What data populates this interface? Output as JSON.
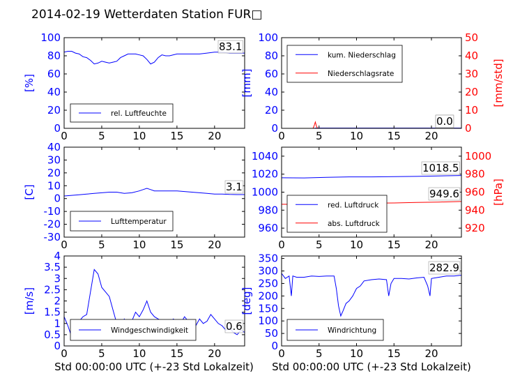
{
  "figure": {
    "title": "2014-02-19 Wetterdaten Station FUR□",
    "xlabel": "Std 00:00:00 UTC (+-23 Std Lokalzeit)",
    "colors": {
      "left_axis": "#0000ff",
      "right_axis": "#ff0000",
      "text": "#000000"
    }
  },
  "chart_data": [
    {
      "id": "humidity",
      "type": "line",
      "xlim": [
        0,
        24
      ],
      "ylim": [
        0,
        100
      ],
      "xticks": [
        0,
        5,
        10,
        15,
        20
      ],
      "yticks": [
        0,
        20,
        40,
        60,
        80,
        100
      ],
      "ylabel": "[%]",
      "legend_loc": "lower-left",
      "last_value": "83.1",
      "series": [
        {
          "name": "rel. Luftfeuchte",
          "axis": "left",
          "color": "#0000ff",
          "x": [
            0,
            0.5,
            1,
            1.5,
            2,
            2.5,
            3,
            3.5,
            4,
            4.5,
            5,
            5.5,
            6,
            6.5,
            7,
            7.5,
            8,
            8.5,
            9,
            9.5,
            10,
            10.5,
            11,
            11.5,
            12,
            12.5,
            13,
            13.5,
            14,
            15,
            16,
            17,
            18,
            19,
            20,
            21,
            22,
            23,
            24
          ],
          "y": [
            84,
            85,
            85,
            83,
            82,
            79,
            78,
            75,
            71,
            72,
            74,
            73,
            72,
            73,
            74,
            78,
            80,
            82,
            82,
            82,
            81,
            80,
            76,
            71,
            73,
            78,
            81,
            80,
            80,
            82,
            82,
            82,
            82,
            83,
            84,
            84,
            83,
            83,
            83
          ]
        }
      ]
    },
    {
      "id": "precipitation",
      "type": "line",
      "xlim": [
        0,
        24
      ],
      "ylim": [
        0,
        100
      ],
      "y2lim": [
        0,
        50
      ],
      "xticks": [
        0,
        5,
        10,
        15,
        20
      ],
      "yticks": [
        0,
        20,
        40,
        60,
        80,
        100
      ],
      "y2ticks": [
        0,
        10,
        20,
        30,
        40,
        50
      ],
      "ylabel": "[mm]",
      "y2label": "[mm/std]",
      "legend_loc": "upper-left",
      "last_value": "0.0",
      "last_value_2": "0.0",
      "series": [
        {
          "name": "kum. Niederschlag",
          "axis": "left",
          "color": "#0000ff",
          "x": [
            0,
            4.3,
            4.6,
            24
          ],
          "y": [
            0,
            0,
            0.3,
            0.3
          ]
        },
        {
          "name": "Niederschlagsrate",
          "axis": "right",
          "color": "#ff0000",
          "x": [
            0,
            4.2,
            4.35,
            4.5,
            4.65,
            4.8,
            24
          ],
          "y": [
            0,
            0,
            1.5,
            3.5,
            1.2,
            0,
            0
          ]
        }
      ]
    },
    {
      "id": "temperature",
      "type": "line",
      "xlim": [
        0,
        24
      ],
      "ylim": [
        -30,
        40
      ],
      "xticks": [
        0,
        5,
        10,
        15,
        20
      ],
      "yticks": [
        -30,
        -20,
        -10,
        0,
        10,
        20,
        30,
        40
      ],
      "ylabel": "[C]",
      "legend_loc": "lower-left",
      "last_value": "3.1",
      "series": [
        {
          "name": "Lufttemperatur",
          "axis": "left",
          "color": "#0000ff",
          "x": [
            0,
            1,
            2,
            3,
            4,
            5,
            6,
            7,
            8,
            9,
            10,
            10.5,
            11,
            11.5,
            12,
            13,
            14,
            15,
            16,
            17,
            18,
            19,
            20,
            21,
            22,
            23,
            24
          ],
          "y": [
            2,
            2.5,
            3,
            3.5,
            4,
            4.5,
            5,
            5,
            4,
            4.5,
            6,
            7,
            8,
            7,
            6,
            6,
            6,
            6,
            5.5,
            5,
            4.5,
            4,
            3.5,
            3.5,
            3.2,
            3.1,
            3.1
          ]
        }
      ]
    },
    {
      "id": "pressure",
      "type": "line",
      "xlim": [
        0,
        24
      ],
      "ylim": [
        950,
        1050
      ],
      "y2lim": [
        910,
        1010
      ],
      "xticks": [
        0,
        5,
        10,
        15,
        20
      ],
      "yticks": [
        960,
        980,
        1000,
        1020,
        1040
      ],
      "y2ticks": [
        920,
        940,
        960,
        980,
        1000
      ],
      "y2label": "[hPa]",
      "legend_loc": "lower-left",
      "last_value": "1018.5",
      "last_value_2": "949.6",
      "series": [
        {
          "name": "red. Luftdruck",
          "axis": "left",
          "color": "#0000ff",
          "x": [
            0,
            3,
            6,
            9,
            12,
            15,
            18,
            21,
            24
          ],
          "y": [
            1016,
            1015.8,
            1016.5,
            1017,
            1017,
            1017.2,
            1017.5,
            1018,
            1018.5
          ]
        },
        {
          "name": "abs. Luftdruck",
          "axis": "right",
          "color": "#ff0000",
          "x": [
            0,
            3,
            6,
            9,
            12,
            15,
            18,
            21,
            24
          ],
          "y": [
            946.5,
            946.4,
            947,
            947.5,
            947.8,
            948,
            948.5,
            949,
            949.6
          ]
        }
      ]
    },
    {
      "id": "windspeed",
      "type": "line",
      "xlim": [
        0,
        24
      ],
      "ylim": [
        0,
        4
      ],
      "xticks": [
        0,
        5,
        10,
        15,
        20
      ],
      "yticks": [
        0,
        0.5,
        1,
        1.5,
        2,
        2.5,
        3,
        3.5,
        4
      ],
      "ylabel": "[m/s]",
      "legend_loc": "lower-center",
      "last_value": "0.6",
      "series": [
        {
          "name": "Windgeschwindigkeit",
          "axis": "left",
          "color": "#0000ff",
          "x": [
            0,
            0.5,
            1,
            1.5,
            2,
            2.5,
            3,
            3.5,
            4,
            4.5,
            5,
            5.5,
            6,
            6.5,
            7,
            7.5,
            8,
            8.5,
            9,
            9.5,
            10,
            10.5,
            11,
            11.5,
            12,
            12.5,
            13,
            13.5,
            14,
            14.5,
            15,
            15.5,
            16,
            16.5,
            17,
            17.5,
            18,
            18.5,
            19,
            19.5,
            20,
            20.5,
            21,
            21.5,
            22,
            22.5,
            23,
            23.5,
            24
          ],
          "y": [
            1.3,
            0.9,
            0.4,
            0.8,
            1.1,
            1.3,
            1.4,
            2.4,
            3.4,
            3.2,
            2.6,
            2.4,
            2.2,
            1.6,
            1.0,
            0.8,
            1.2,
            1.0,
            1.1,
            1.5,
            1.3,
            1.6,
            2.0,
            1.5,
            1.3,
            1.2,
            1.1,
            1.0,
            0.9,
            1.2,
            1.1,
            1.0,
            1.3,
            1.1,
            0.8,
            0.9,
            1.2,
            1.0,
            1.1,
            1.4,
            1.2,
            1.0,
            0.9,
            0.7,
            0.8,
            0.6,
            0.5,
            0.7,
            0.6
          ]
        }
      ]
    },
    {
      "id": "winddirection",
      "type": "line",
      "xlim": [
        0,
        24
      ],
      "ylim": [
        0,
        360
      ],
      "xticks": [
        0,
        5,
        10,
        15,
        20
      ],
      "yticks": [
        0,
        50,
        100,
        150,
        200,
        250,
        300,
        350
      ],
      "ylabel": "[deg]",
      "legend_loc": "lower-left",
      "last_value": "282.9",
      "series": [
        {
          "name": "Windrichtung",
          "axis": "left",
          "color": "#0000ff",
          "x": [
            0,
            0.5,
            1,
            1.3,
            1.5,
            2,
            3,
            4,
            5,
            6,
            7,
            7.3,
            7.6,
            7.9,
            8.2,
            8.6,
            9,
            9.5,
            10,
            10.5,
            11,
            12,
            13,
            14,
            14.3,
            14.6,
            15,
            16,
            17,
            18,
            19,
            19.5,
            19.8,
            20,
            21,
            22,
            23,
            24
          ],
          "y": [
            290,
            270,
            280,
            200,
            280,
            275,
            275,
            280,
            278,
            280,
            280,
            230,
            160,
            120,
            140,
            170,
            180,
            200,
            230,
            240,
            260,
            265,
            268,
            265,
            200,
            250,
            270,
            270,
            268,
            272,
            275,
            240,
            200,
            270,
            275,
            280,
            280,
            283
          ]
        }
      ]
    }
  ]
}
